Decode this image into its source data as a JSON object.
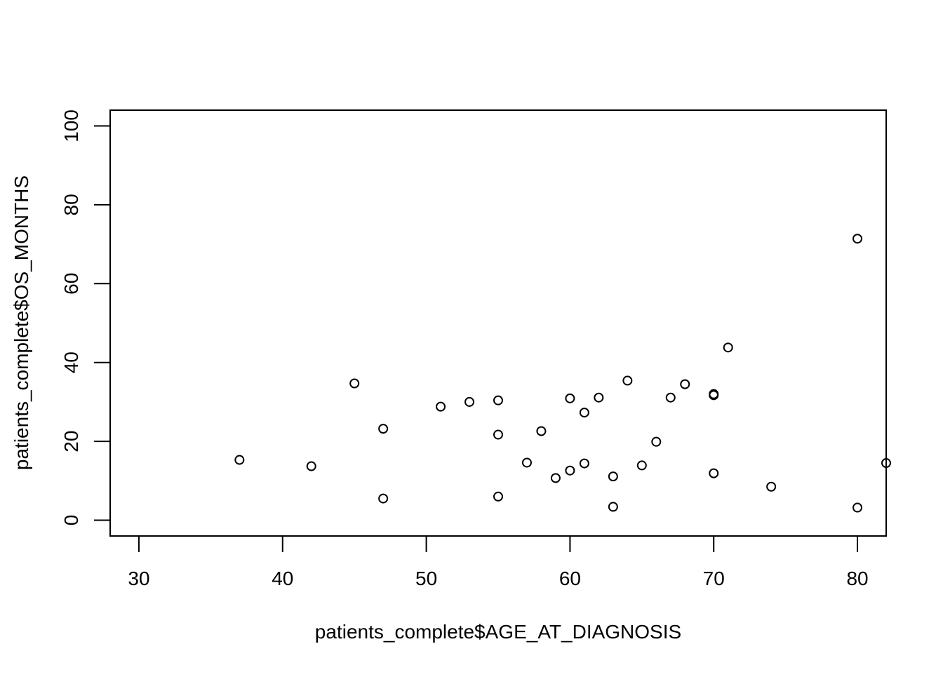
{
  "chart_data": {
    "type": "scatter",
    "title": "",
    "xlabel": "patients_complete$AGE_AT_DIAGNOSIS",
    "ylabel": "patients_complete$OS_MONTHS",
    "xlim": [
      28,
      82
    ],
    "ylim": [
      -4,
      104
    ],
    "x_ticks": [
      30,
      40,
      50,
      60,
      70,
      80
    ],
    "y_ticks": [
      0,
      20,
      40,
      60,
      80,
      100
    ],
    "grid": false,
    "legend": "none",
    "marker": "open-circle",
    "marker_color": "#000000",
    "points": [
      {
        "x": 37,
        "y": 15.3
      },
      {
        "x": 42,
        "y": 13.7
      },
      {
        "x": 45,
        "y": 34.7
      },
      {
        "x": 47,
        "y": 23.2
      },
      {
        "x": 47,
        "y": 5.5
      },
      {
        "x": 51,
        "y": 28.8
      },
      {
        "x": 53,
        "y": 30.0
      },
      {
        "x": 55,
        "y": 30.4
      },
      {
        "x": 55,
        "y": 21.7
      },
      {
        "x": 55,
        "y": 6.0
      },
      {
        "x": 57,
        "y": 14.6
      },
      {
        "x": 58,
        "y": 22.6
      },
      {
        "x": 59,
        "y": 10.7
      },
      {
        "x": 60,
        "y": 30.9
      },
      {
        "x": 60,
        "y": 12.6
      },
      {
        "x": 61,
        "y": 27.3
      },
      {
        "x": 61,
        "y": 14.4
      },
      {
        "x": 62,
        "y": 31.1
      },
      {
        "x": 63,
        "y": 11.1
      },
      {
        "x": 63,
        "y": 3.4
      },
      {
        "x": 64,
        "y": 35.4
      },
      {
        "x": 65,
        "y": 13.9
      },
      {
        "x": 66,
        "y": 19.9
      },
      {
        "x": 67,
        "y": 31.1
      },
      {
        "x": 68,
        "y": 34.5
      },
      {
        "x": 70,
        "y": 32.0
      },
      {
        "x": 70,
        "y": 31.7
      },
      {
        "x": 70,
        "y": 11.9
      },
      {
        "x": 71,
        "y": 43.8
      },
      {
        "x": 74,
        "y": 8.5
      },
      {
        "x": 80,
        "y": 71.4
      },
      {
        "x": 80,
        "y": 3.2
      },
      {
        "x": 82,
        "y": 14.5
      }
    ]
  }
}
